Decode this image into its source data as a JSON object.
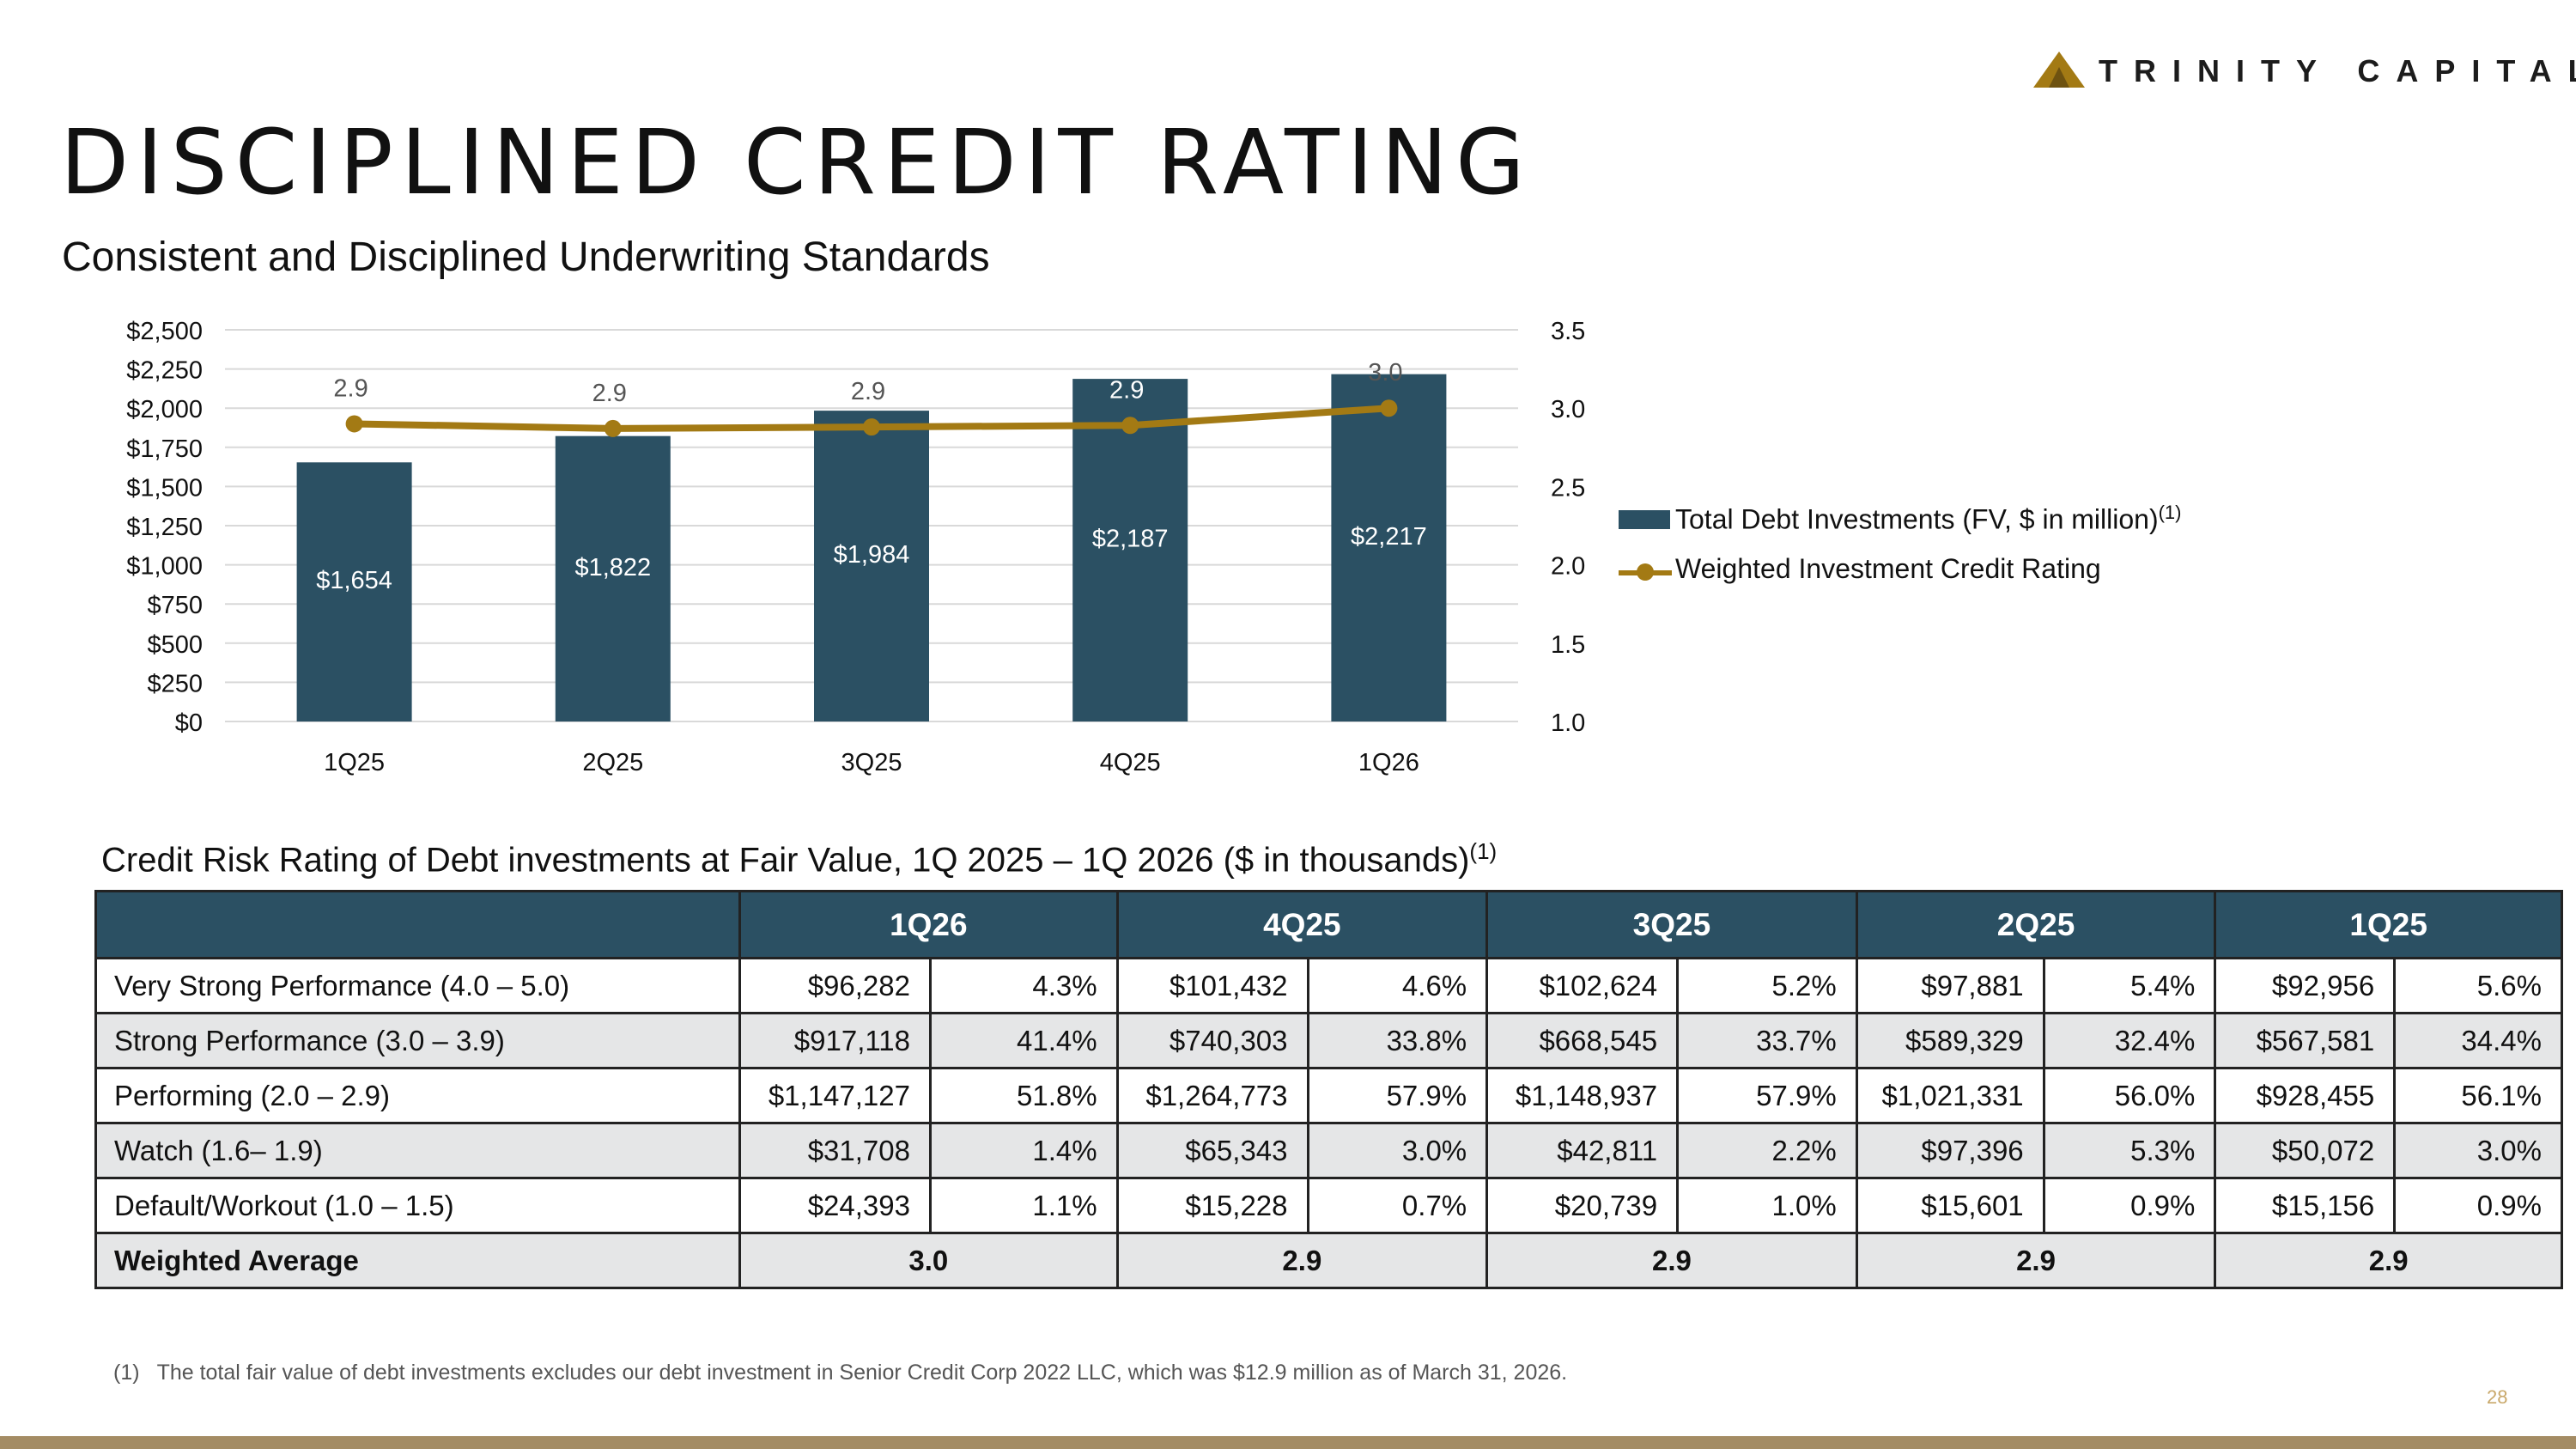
{
  "brand": {
    "name": "TRINITY CAPITAL",
    "mark_color": "#a37a14"
  },
  "title": "DISCIPLINED CREDIT RATING",
  "subtitle": "Consistent and Disciplined Underwriting Standards",
  "chart_data": {
    "type": "bar",
    "categories": [
      "1Q25",
      "2Q25",
      "3Q25",
      "4Q25",
      "1Q26"
    ],
    "series": [
      {
        "name": "Total Debt Investments (FV, $ in million)",
        "type": "bar",
        "axis": "left",
        "values": [
          1654,
          1822,
          1984,
          2187,
          2217
        ],
        "labels": [
          "$1,654",
          "$1,822",
          "$1,984",
          "$2,187",
          "$2,217"
        ],
        "color": "#2b5063"
      },
      {
        "name": "Weighted Investment Credit Rating",
        "type": "line",
        "axis": "right",
        "values": [
          2.9,
          2.87,
          2.88,
          2.89,
          3.0
        ],
        "labels": [
          "2.9",
          "2.9",
          "2.9",
          "2.9",
          "3.0"
        ],
        "color": "#a37a14"
      }
    ],
    "ylim": [
      0,
      2500
    ],
    "yticks": [
      "$0",
      "$250",
      "$500",
      "$750",
      "$1,000",
      "$1,250",
      "$1,500",
      "$1,750",
      "$2,000",
      "$2,250",
      "$2,500"
    ],
    "y2lim": [
      1.0,
      3.5
    ],
    "y2ticks": [
      "1.0",
      "1.5",
      "2.0",
      "2.5",
      "3.0",
      "3.5"
    ],
    "grid": true,
    "legend_position": "right",
    "legend_note": "(1)"
  },
  "table": {
    "caption": "Credit Risk Rating of Debt investments at Fair Value, 1Q 2025 – 1Q 2026 ($ in thousands)",
    "caption_note": "(1)",
    "columns": [
      "1Q26",
      "4Q25",
      "3Q25",
      "2Q25",
      "1Q25"
    ],
    "rows": [
      {
        "label": "Very Strong Performance (4.0 – 5.0)",
        "cells": [
          "$96,282",
          "4.3%",
          "$101,432",
          "4.6%",
          "$102,624",
          "5.2%",
          "$97,881",
          "5.4%",
          "$92,956",
          "5.6%"
        ]
      },
      {
        "label": "Strong Performance (3.0 – 3.9)",
        "cells": [
          "$917,118",
          "41.4%",
          "$740,303",
          "33.8%",
          "$668,545",
          "33.7%",
          "$589,329",
          "32.4%",
          "$567,581",
          "34.4%"
        ]
      },
      {
        "label": "Performing (2.0 – 2.9)",
        "cells": [
          "$1,147,127",
          "51.8%",
          "$1,264,773",
          "57.9%",
          "$1,148,937",
          "57.9%",
          "$1,021,331",
          "56.0%",
          "$928,455",
          "56.1%"
        ]
      },
      {
        "label": "Watch (1.6– 1.9)",
        "cells": [
          "$31,708",
          "1.4%",
          "$65,343",
          "3.0%",
          "$42,811",
          "2.2%",
          "$97,396",
          "5.3%",
          "$50,072",
          "3.0%"
        ]
      },
      {
        "label": "Default/Workout (1.0 – 1.5)",
        "cells": [
          "$24,393",
          "1.1%",
          "$15,228",
          "0.7%",
          "$20,739",
          "1.0%",
          "$15,601",
          "0.9%",
          "$15,156",
          "0.9%"
        ]
      }
    ],
    "average": {
      "label": "Weighted Average",
      "values": [
        "3.0",
        "2.9",
        "2.9",
        "2.9",
        "2.9"
      ]
    }
  },
  "footnote": {
    "mark": "(1)",
    "text": "The total fair value of debt investments excludes our debt investment in Senior Credit Corp 2022 LLC, which was $12.9 million as of March 31, 2026."
  },
  "page_number": "28"
}
